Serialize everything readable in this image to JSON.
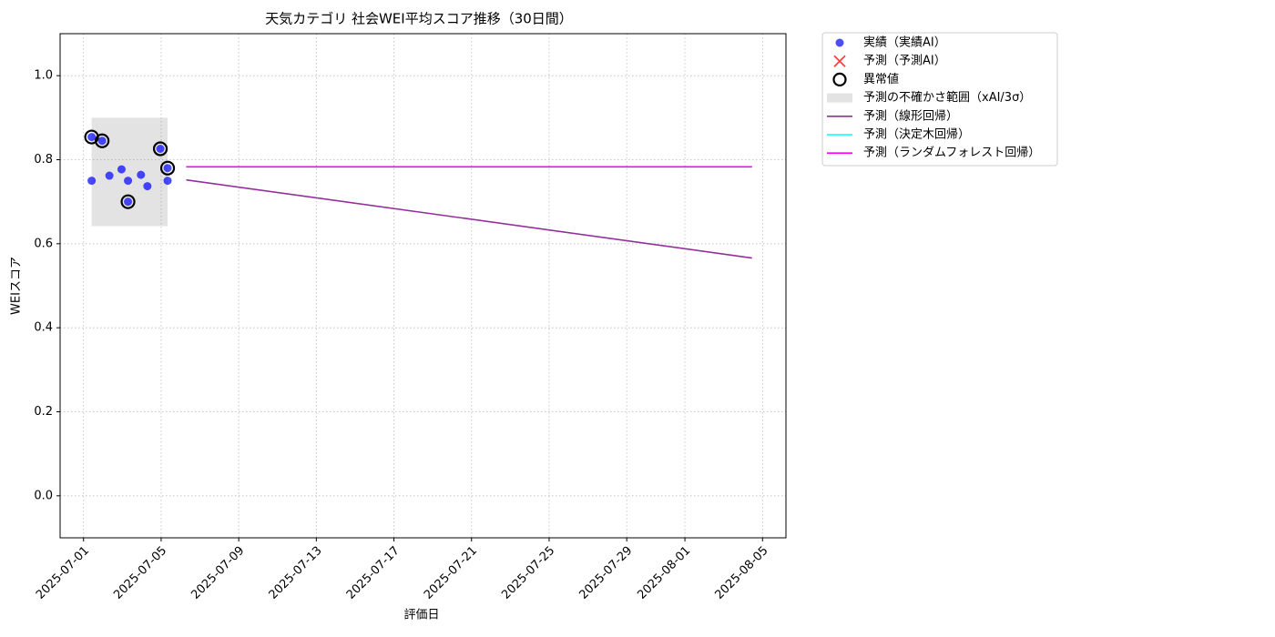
{
  "chart_data": {
    "type": "scatter",
    "title": "天気カテゴリ 社会WEI平均スコア推移（30日間）",
    "x_label": "評価日",
    "y_label": "WEIスコア",
    "xlim": [
      "2025-06-29T19:00",
      "2025-08-06T05:00"
    ],
    "xticks": [
      "2025-07-01",
      "2025-07-05",
      "2025-07-09",
      "2025-07-13",
      "2025-07-17",
      "2025-07-21",
      "2025-07-25",
      "2025-07-29",
      "2025-08-01",
      "2025-08-05"
    ],
    "ylim": [
      -0.1,
      1.1
    ],
    "yticks": [
      {
        "value": 0,
        "label": "0.0"
      },
      0.2,
      0.4,
      0.6,
      0.8,
      {
        "value": 1,
        "label": "1.0"
      }
    ],
    "grid": true,
    "series": [
      {
        "name": "実績（実績AI）",
        "kind": "points",
        "color": "#0000ff",
        "x": [
          "2025-07-01T10:00",
          "2025-07-01T10:00",
          "2025-07-01T23:00",
          "2025-07-02T08:00",
          "2025-07-02T23:00",
          "2025-07-03T07:00",
          "2025-07-03T07:00",
          "2025-07-03T23:00",
          "2025-07-04T07:00",
          "2025-07-04T23:00",
          "2025-07-05T08:00",
          "2025-07-05T08:00"
        ],
        "values": [
          0.75,
          0.854,
          0.845,
          0.762,
          0.777,
          0.75,
          0.7,
          0.764,
          0.737,
          0.826,
          0.75,
          0.78
        ]
      },
      {
        "name": "予測（予測AI）",
        "kind": "cross",
        "color": "#ff0000",
        "x": [],
        "values": []
      },
      {
        "name": "異常値",
        "kind": "ring",
        "color": "#000000",
        "x": [
          "2025-07-01T10:00",
          "2025-07-01T23:00",
          "2025-07-03T07:00",
          "2025-07-04T23:00",
          "2025-07-05T08:00"
        ],
        "values": [
          0.854,
          0.845,
          0.7,
          0.826,
          0.78
        ]
      },
      {
        "name": "予測の不確かさ範囲（xAI/3σ）",
        "kind": "band",
        "color": "#808080",
        "x": [
          "2025-07-01T10:00",
          "2025-07-05T08:00"
        ],
        "lower": [
          0.642,
          0.642
        ],
        "upper": [
          0.9,
          0.9
        ]
      },
      {
        "name": "予測（線形回帰）",
        "kind": "line",
        "color": "#952f9b",
        "x": [
          "2025-07-06T07:00",
          "2025-08-04T11:00"
        ],
        "values": [
          0.752,
          0.566
        ]
      },
      {
        "name": "予測（決定木回帰）",
        "kind": "line",
        "color": "#00ffff",
        "x": [
          "2025-07-06T07:00",
          "2025-08-04T11:00"
        ],
        "values": [
          0.783,
          0.783
        ]
      },
      {
        "name": "予測（ランダムフォレスト回帰）",
        "kind": "line",
        "color": "#ff00ff",
        "x": [
          "2025-07-06T07:00",
          "2025-08-04T11:00"
        ],
        "values": [
          0.783,
          0.783
        ]
      }
    ]
  }
}
